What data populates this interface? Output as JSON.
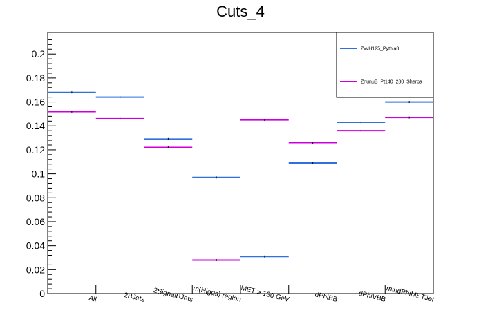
{
  "chart_data": {
    "type": "line",
    "title": "Cuts_4",
    "xlabel": "",
    "ylabel": "",
    "categories": [
      "All",
      "2BJets",
      "2SignalBJets",
      "m(Higgs) region",
      "MET > 130 GeV",
      "dPhiBB",
      "dPhiVBB",
      "mindPhiMETJet"
    ],
    "ylim": [
      0,
      0.218
    ],
    "yticks": [
      0,
      0.02,
      0.04,
      0.06,
      0.08,
      0.1,
      0.12,
      0.14,
      0.16,
      0.18,
      0.2
    ],
    "ytick_labels": [
      "0",
      "0.02",
      "0.04",
      "0.06",
      "0.08",
      "0.1",
      "0.12",
      "0.14",
      "0.16",
      "0.18",
      "0.2"
    ],
    "grid": false,
    "legend_position": "top-right",
    "series": [
      {
        "name": "ZvvH125_Pythia8",
        "color": "#2f6fdf",
        "values": [
          0.168,
          0.164,
          0.129,
          0.097,
          0.031,
          0.109,
          0.143,
          0.16
        ]
      },
      {
        "name": "ZnunuB_Pt140_280_Sherpa",
        "color": "#cc00dd",
        "values": [
          0.152,
          0.146,
          0.122,
          0.028,
          0.145,
          0.126,
          0.136,
          0.147
        ]
      }
    ]
  }
}
